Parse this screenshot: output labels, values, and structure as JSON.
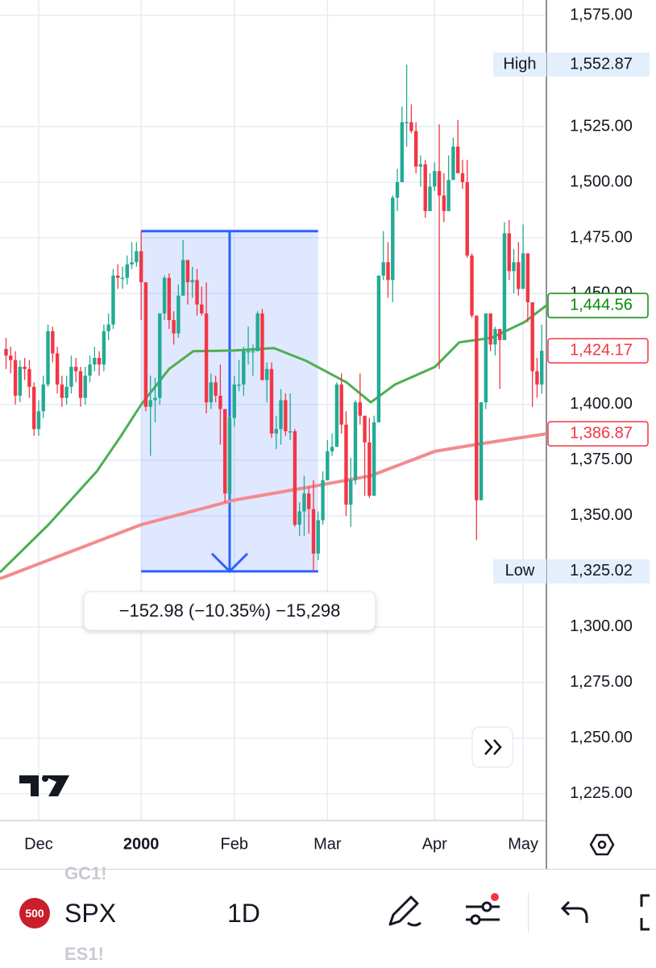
{
  "chart_data": {
    "type": "candlestick",
    "open": [
      1425,
      1422,
      1420,
      1404,
      1417,
      1416,
      1408,
      1389,
      1397,
      1409,
      1433,
      1423,
      1409,
      1403,
      1408,
      1417,
      1415,
      1403,
      1413,
      1418,
      1421,
      1418,
      1433,
      1436,
      1458,
      1457,
      1457,
      1463,
      1464,
      1469,
      1455,
      1399,
      1402,
      1403,
      1441,
      1457,
      1438,
      1432,
      1449,
      1465,
      1455,
      1456,
      1445,
      1441,
      1401,
      1410,
      1404,
      1398,
      1360,
      1394,
      1409,
      1409,
      1424,
      1424,
      1424,
      1441,
      1411,
      1416,
      1387,
      1389,
      1402,
      1388,
      1388,
      1346,
      1352,
      1360,
      1353,
      1333,
      1348,
      1366,
      1379,
      1381,
      1409,
      1391,
      1355,
      1366,
      1401,
      1395,
      1383,
      1359,
      1392,
      1458,
      1464,
      1456,
      1493,
      1500,
      1527,
      1527,
      1523,
      1507,
      1508,
      1487,
      1498,
      1505,
      1494,
      1487,
      1501,
      1516,
      1504,
      1500,
      1467,
      1440,
      1357,
      1401,
      1441,
      1427,
      1434,
      1429,
      1477,
      1460,
      1464,
      1452,
      1468,
      1446,
      1415,
      1409
    ],
    "high": [
      1430,
      1426,
      1424,
      1420,
      1421,
      1420,
      1410,
      1402,
      1413,
      1436,
      1435,
      1426,
      1413,
      1413,
      1422,
      1421,
      1417,
      1417,
      1422,
      1426,
      1424,
      1436,
      1441,
      1461,
      1463,
      1462,
      1467,
      1473,
      1473,
      1478,
      1455,
      1413,
      1412,
      1441,
      1458,
      1459,
      1442,
      1454,
      1474,
      1465,
      1462,
      1461,
      1453,
      1455,
      1414,
      1413,
      1418,
      1398,
      1395,
      1413,
      1420,
      1426,
      1435,
      1427,
      1442,
      1443,
      1419,
      1419,
      1395,
      1407,
      1405,
      1405,
      1389,
      1356,
      1368,
      1363,
      1366,
      1352,
      1370,
      1384,
      1387,
      1410,
      1414,
      1397,
      1376,
      1402,
      1414,
      1395,
      1394,
      1395,
      1458,
      1478,
      1473,
      1494,
      1506,
      1534,
      1552.87,
      1535,
      1527,
      1512,
      1510,
      1504,
      1509,
      1526,
      1504,
      1512,
      1520,
      1528,
      1510,
      1510,
      1468,
      1440,
      1401,
      1441,
      1441,
      1435,
      1434,
      1482,
      1483,
      1470,
      1473,
      1481,
      1468,
      1446,
      1421,
      1436
    ],
    "low": [
      1416,
      1414,
      1400,
      1401,
      1411,
      1403,
      1386,
      1386,
      1394,
      1408,
      1419,
      1405,
      1399,
      1400,
      1405,
      1410,
      1399,
      1400,
      1410,
      1415,
      1413,
      1415,
      1429,
      1434,
      1452,
      1452,
      1454,
      1461,
      1462,
      1438,
      1397,
      1377,
      1392,
      1400,
      1438,
      1434,
      1427,
      1430,
      1449,
      1445,
      1448,
      1440,
      1440,
      1396,
      1398,
      1401,
      1382,
      1356,
      1357,
      1390,
      1406,
      1404,
      1418,
      1413,
      1424,
      1411,
      1401,
      1385,
      1380,
      1382,
      1386,
      1384,
      1345,
      1341,
      1341,
      1342,
      1325.02,
      1330,
      1346,
      1366,
      1377,
      1381,
      1387,
      1350,
      1345,
      1364,
      1391,
      1359,
      1358,
      1359,
      1392,
      1456,
      1448,
      1446,
      1487,
      1500,
      1516,
      1522,
      1504,
      1498,
      1484,
      1487,
      1496,
      1416,
      1482,
      1487,
      1501,
      1504,
      1497,
      1466,
      1439,
      1339,
      1357,
      1398,
      1424,
      1422,
      1407,
      1429,
      1456,
      1450,
      1449,
      1452,
      1437,
      1399,
      1403,
      1405
    ],
    "close": [
      1422,
      1420,
      1404,
      1417,
      1416,
      1408,
      1389,
      1397,
      1409,
      1433,
      1423,
      1409,
      1403,
      1408,
      1417,
      1415,
      1403,
      1413,
      1418,
      1421,
      1418,
      1433,
      1436,
      1458,
      1457,
      1457,
      1463,
      1464,
      1469,
      1455,
      1399,
      1402,
      1403,
      1441,
      1457,
      1438,
      1432,
      1449,
      1465,
      1455,
      1456,
      1445,
      1441,
      1401,
      1410,
      1404,
      1398,
      1360,
      1394,
      1409,
      1409,
      1424,
      1424,
      1424,
      1441,
      1411,
      1416,
      1387,
      1389,
      1402,
      1388,
      1388,
      1346,
      1352,
      1360,
      1353,
      1333,
      1348,
      1366,
      1379,
      1381,
      1409,
      1391,
      1355,
      1366,
      1401,
      1395,
      1383,
      1359,
      1392,
      1458,
      1464,
      1456,
      1493,
      1500,
      1527,
      1527,
      1523,
      1507,
      1508,
      1487,
      1498,
      1505,
      1494,
      1487,
      1501,
      1516,
      1504,
      1500,
      1467,
      1440,
      1357,
      1401,
      1441,
      1427,
      1434,
      1429,
      1477,
      1460,
      1464,
      1452,
      1468,
      1446,
      1415,
      1409,
      1424.17
    ],
    "up_color": "#22ab94",
    "down_color": "#f23645",
    "xlim": [
      -1.3,
      116
    ],
    "ylim": [
      1213,
      1581.9
    ],
    "xticks": [
      {
        "value": 7,
        "label": "Dec"
      },
      {
        "value": 29,
        "label": "2000"
      },
      {
        "value": 49,
        "label": "Feb"
      },
      {
        "value": 69,
        "label": "Mar"
      },
      {
        "value": 92,
        "label": "Apr"
      },
      {
        "value": 111,
        "label": "May"
      }
    ],
    "yticks": [
      {
        "value": 1575,
        "label": "1,575.00"
      },
      {
        "value": 1525,
        "label": "1,525.00"
      },
      {
        "value": 1500,
        "label": "1,500.00"
      },
      {
        "value": 1475,
        "label": "1,475.00"
      },
      {
        "value": 1450,
        "label": "1,450.00"
      },
      {
        "value": 1400,
        "label": "1,400.00"
      },
      {
        "value": 1375,
        "label": "1,375.00"
      },
      {
        "value": 1350,
        "label": "1,350.00"
      },
      {
        "value": 1300,
        "label": "1,300.00"
      },
      {
        "value": 1275,
        "label": "1,275.00"
      },
      {
        "value": 1250,
        "label": "1,250.00"
      },
      {
        "value": 1225,
        "label": "1,225.00"
      }
    ],
    "grid": true,
    "lines": [
      {
        "color": "#4caf50",
        "x": [
          -1.3,
          9.1,
          19.5,
          24.7,
          29,
          35,
          40.2,
          48.9,
          57.5,
          64.5,
          73.1,
          78.3,
          83.5,
          92.1,
          97.3,
          104.2,
          111.2,
          116
        ],
        "values": [
          1324.6,
          1346,
          1370,
          1386,
          1400,
          1416,
          1424,
          1424.3,
          1425.4,
          1419.6,
          1410,
          1401,
          1409,
          1417,
          1428,
          1430,
          1437,
          1444.56
        ]
      },
      {
        "color": "#f38b8f",
        "x": [
          -1.3,
          29,
          48.9,
          64.5,
          78.3,
          92.1,
          102.5,
          116
        ],
        "values": [
          1321.7,
          1346,
          1357,
          1362.7,
          1368,
          1379,
          1382.6,
          1386.87
        ]
      }
    ],
    "price_labels": [
      {
        "tag": "High",
        "value": 1552.87,
        "label": "1,552.87",
        "color": "#e3effd"
      },
      {
        "value": 1444.56,
        "label": "1,444.56",
        "color": "#0a8a0a"
      },
      {
        "value": 1424.17,
        "label": "1,424.17",
        "color": "#f23645"
      },
      {
        "value": 1386.87,
        "label": "1,386.87",
        "color": "#f23645"
      },
      {
        "tag": "Low",
        "value": 1325.02,
        "label": "1,325.02",
        "color": "#e3effd"
      }
    ],
    "measure": {
      "x_start": 29,
      "x_end": 67,
      "top": 1478,
      "bottom": 1325.02,
      "label": "−152.98 (−10.35%) −15,298"
    }
  },
  "toolbar": {
    "above": "GC1!",
    "badge": "500",
    "symbol": "SPX",
    "interval": "1D",
    "below": "ES1!"
  }
}
